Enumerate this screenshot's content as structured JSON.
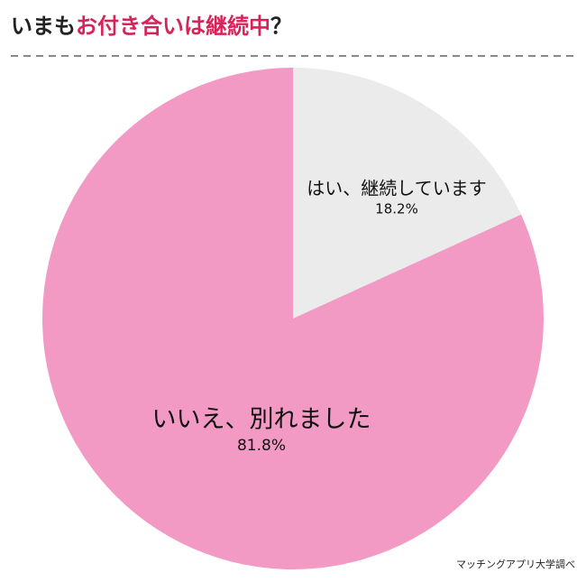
{
  "chart_data": {
    "type": "pie",
    "title_parts": [
      "いまも",
      "お付き合いは継続中",
      "？"
    ],
    "title_colors": [
      "#222222",
      "#d6245a",
      "#222222"
    ],
    "categories": [
      "はい、継続しています",
      "いいえ、別れました"
    ],
    "values": [
      18.2,
      81.8
    ],
    "value_labels": [
      "18.2%",
      "81.8%"
    ],
    "colors": [
      "#ebebeb",
      "#f29ac4"
    ],
    "source": "マッチングアプリ大学調べ"
  }
}
